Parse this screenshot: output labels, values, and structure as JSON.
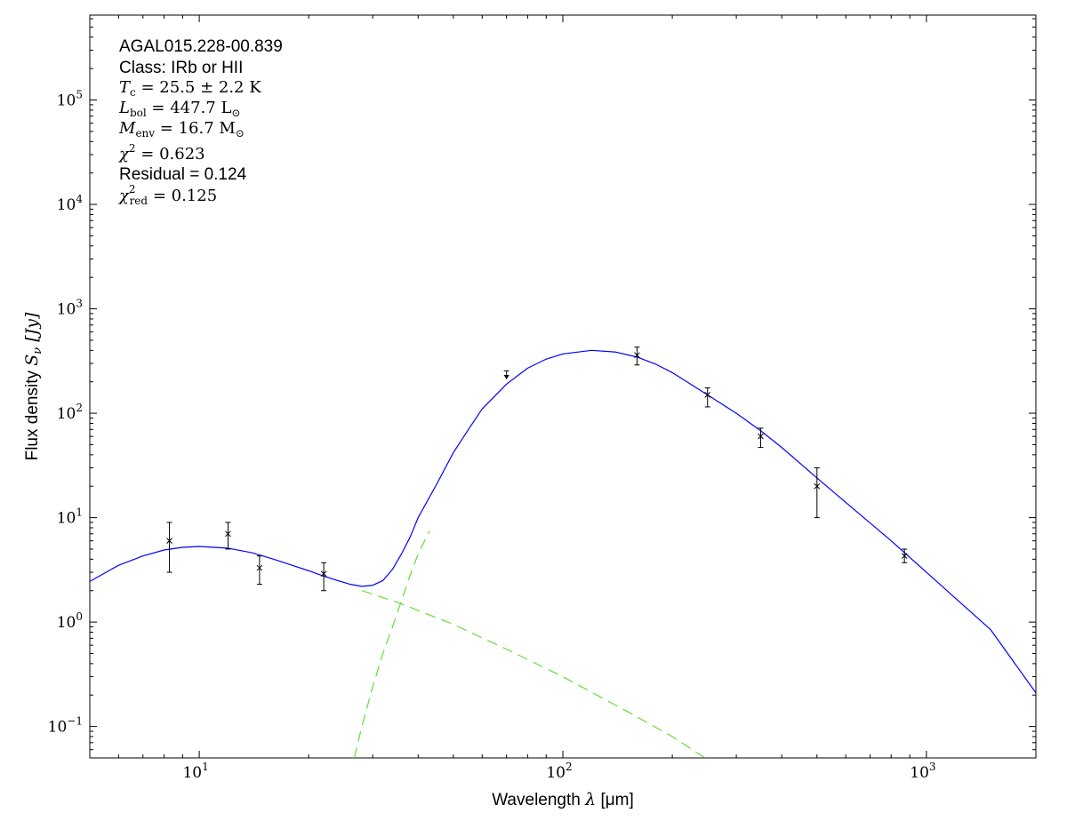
{
  "annotations": {
    "source_name": "AGAL015.228-00.839",
    "class_label": "Class: IRb or HII",
    "tc": {
      "symbol": "T",
      "sub": "c",
      "value": " = 25.5 ± 2.2 K"
    },
    "lbol": {
      "symbol": "L",
      "sub": "bol",
      "value": " = 447.7 L",
      "unit_sub": "⊙"
    },
    "menv": {
      "symbol": "M",
      "sub": "env",
      "value": " = 16.7 M",
      "unit_sub": "⊙"
    },
    "chi2": {
      "symbol": "χ",
      "sup": "2",
      "value": " = 0.623"
    },
    "residual": "Residual = 0.124",
    "chi2red": {
      "symbol": "χ",
      "sup": "2",
      "sub": "red",
      "value": " = 0.125"
    }
  },
  "chart_data": {
    "type": "scatter",
    "xlabel": "Wavelength λ [μm]",
    "xlabel_parts": {
      "text": "Wavelength ",
      "symbol": "λ",
      "unit": " [μm]"
    },
    "ylabel": "Flux density Sν [Jy]",
    "ylabel_parts": {
      "text": "Flux density ",
      "symbol": "S",
      "sub": "ν",
      "unit": " [Jy]"
    },
    "xscale": "log",
    "yscale": "log",
    "xlim": [
      5,
      2000
    ],
    "ylim": [
      0.05,
      650000
    ],
    "x_ticks": [
      {
        "value": 10,
        "base": "10",
        "exp": "1"
      },
      {
        "value": 100,
        "base": "10",
        "exp": "2"
      },
      {
        "value": 1000,
        "base": "10",
        "exp": "3"
      }
    ],
    "y_ticks": [
      {
        "value": 0.1,
        "base": "10",
        "exp": "−1"
      },
      {
        "value": 1,
        "base": "10",
        "exp": "0"
      },
      {
        "value": 10,
        "base": "10",
        "exp": "1"
      },
      {
        "value": 100,
        "base": "10",
        "exp": "2"
      },
      {
        "value": 1000,
        "base": "10",
        "exp": "3"
      },
      {
        "value": 10000,
        "base": "10",
        "exp": "4"
      },
      {
        "value": 100000,
        "base": "10",
        "exp": "5"
      }
    ],
    "points": [
      {
        "x": 8.28,
        "y": 6.0,
        "err_low": 3.0,
        "err_high": 9.0
      },
      {
        "x": 12.0,
        "y": 7.0,
        "err_low": 5.0,
        "err_high": 9.0
      },
      {
        "x": 14.65,
        "y": 3.3,
        "err_low": 2.3,
        "err_high": 4.3
      },
      {
        "x": 22.0,
        "y": 2.9,
        "err_low": 2.0,
        "err_high": 3.7
      },
      {
        "x": 160,
        "y": 360,
        "err_low": 290,
        "err_high": 430
      },
      {
        "x": 250,
        "y": 150,
        "err_low": 115,
        "err_high": 175
      },
      {
        "x": 350,
        "y": 60,
        "err_low": 47,
        "err_high": 72
      },
      {
        "x": 500,
        "y": 20,
        "err_low": 10,
        "err_high": 30
      },
      {
        "x": 870,
        "y": 4.3,
        "err_low": 3.7,
        "err_high": 5.0
      }
    ],
    "upper_limits": [
      {
        "x": 70,
        "y": 255,
        "y_end": 215
      }
    ],
    "total_model": {
      "color": "#0000ff",
      "x": [
        5,
        6,
        7,
        8,
        9,
        10,
        12,
        14,
        16,
        18,
        20,
        22,
        24,
        26,
        28,
        30,
        32,
        34,
        36,
        38,
        40,
        45,
        50,
        55,
        60,
        70,
        80,
        90,
        100,
        120,
        140,
        160,
        180,
        200,
        250,
        300,
        350,
        400,
        500,
        600,
        800,
        1000,
        1200,
        1500,
        2000
      ],
      "y": [
        2.45,
        3.5,
        4.3,
        4.9,
        5.2,
        5.3,
        5.1,
        4.6,
        4.0,
        3.5,
        3.1,
        2.75,
        2.5,
        2.3,
        2.2,
        2.25,
        2.5,
        3.2,
        4.5,
        6.5,
        10,
        21,
        42,
        70,
        110,
        190,
        270,
        330,
        370,
        400,
        385,
        345,
        295,
        245,
        150,
        100,
        68,
        47,
        24,
        14,
        6.0,
        3.0,
        1.7,
        0.85,
        0.21
      ]
    },
    "component_warm": {
      "color": "#66dd33",
      "style": "dashed",
      "x": [
        28,
        35,
        50,
        70,
        100,
        150,
        200,
        246
      ],
      "y": [
        2.0,
        1.55,
        0.95,
        0.55,
        0.3,
        0.14,
        0.08,
        0.05
      ]
    },
    "component_cold": {
      "color": "#66dd33",
      "style": "dashed",
      "x": [
        26.7,
        28,
        30,
        32,
        34,
        36,
        38,
        40,
        43
      ],
      "y": [
        0.05,
        0.1,
        0.24,
        0.5,
        0.9,
        1.6,
        2.8,
        4.5,
        7.5
      ]
    }
  }
}
